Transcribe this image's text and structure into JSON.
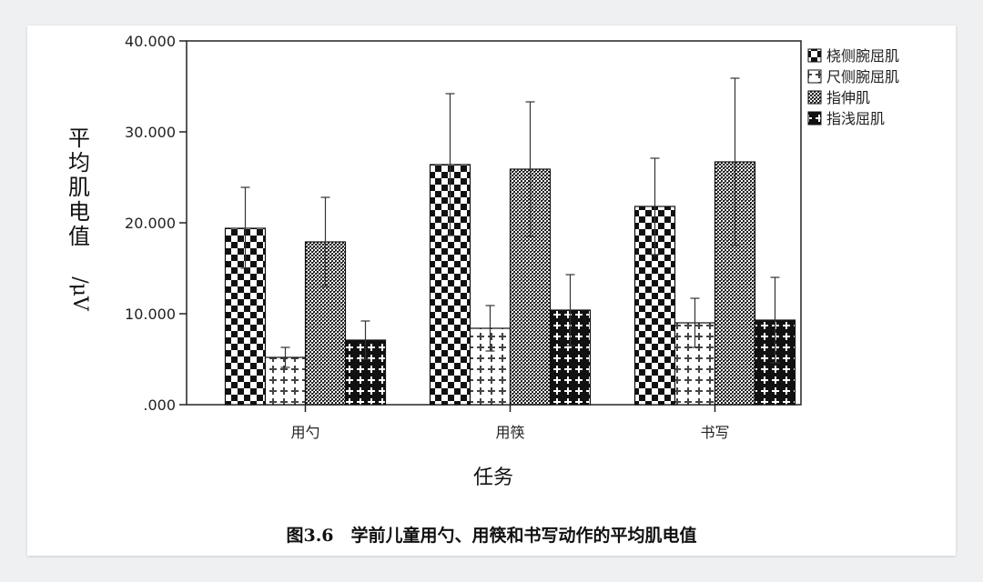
{
  "chart_data": {
    "type": "bar",
    "categories": [
      "用勺",
      "用筷",
      "书写"
    ],
    "xlabel": "任务",
    "ylabel": "平均肌电值/μV",
    "ylim": [
      0,
      40
    ],
    "yticks": [
      0,
      10,
      20,
      30,
      40
    ],
    "ytick_labels": [
      ".000",
      "10.000",
      "20.000",
      "30.000",
      "40.000"
    ],
    "legend_position": "right",
    "series": [
      {
        "name": "桡侧腕屈肌",
        "pattern": "checker",
        "values": [
          19.4,
          26.4,
          21.8
        ],
        "err_high": [
          23.9,
          34.2,
          27.1
        ],
        "err_low": [
          15.0,
          18.6,
          16.5
        ]
      },
      {
        "name": "尺侧腕屈肌",
        "pattern": "cross-light",
        "values": [
          5.2,
          8.4,
          9.0
        ],
        "err_high": [
          6.3,
          10.9,
          11.7
        ],
        "err_low": [
          4.1,
          5.9,
          6.3
        ]
      },
      {
        "name": "指伸肌",
        "pattern": "dense",
        "values": [
          17.9,
          25.9,
          26.7
        ],
        "err_high": [
          22.8,
          33.3,
          35.9
        ],
        "err_low": [
          13.0,
          18.5,
          17.5
        ]
      },
      {
        "name": "指浅屈肌",
        "pattern": "cross-dark",
        "values": [
          7.1,
          10.4,
          9.3
        ],
        "err_high": [
          9.2,
          14.3,
          14.0
        ],
        "err_low": [
          5.0,
          6.5,
          4.6
        ]
      }
    ]
  },
  "caption": "图3.6　学前儿童用勺、用筷和书写动作的平均肌电值"
}
